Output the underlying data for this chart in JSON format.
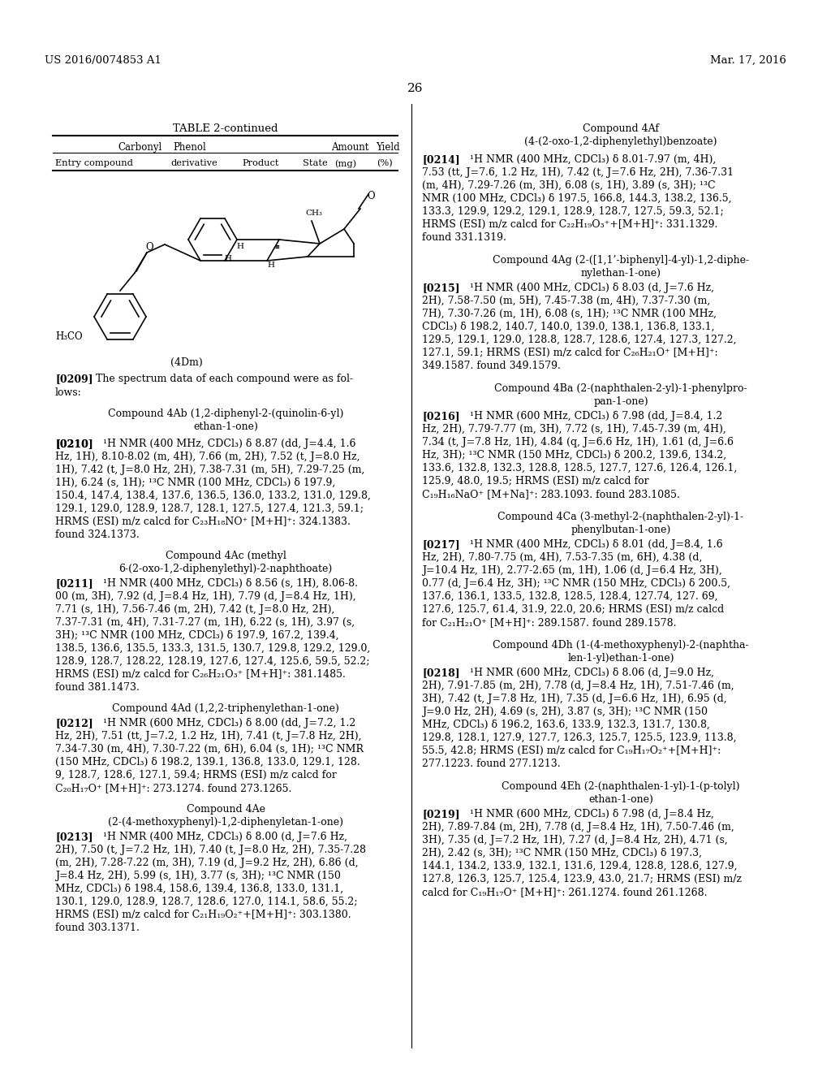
{
  "background_color": "#ffffff",
  "page_number": "26",
  "header_left": "US 2016/0074853 A1",
  "header_right": "Mar. 17, 2016"
}
